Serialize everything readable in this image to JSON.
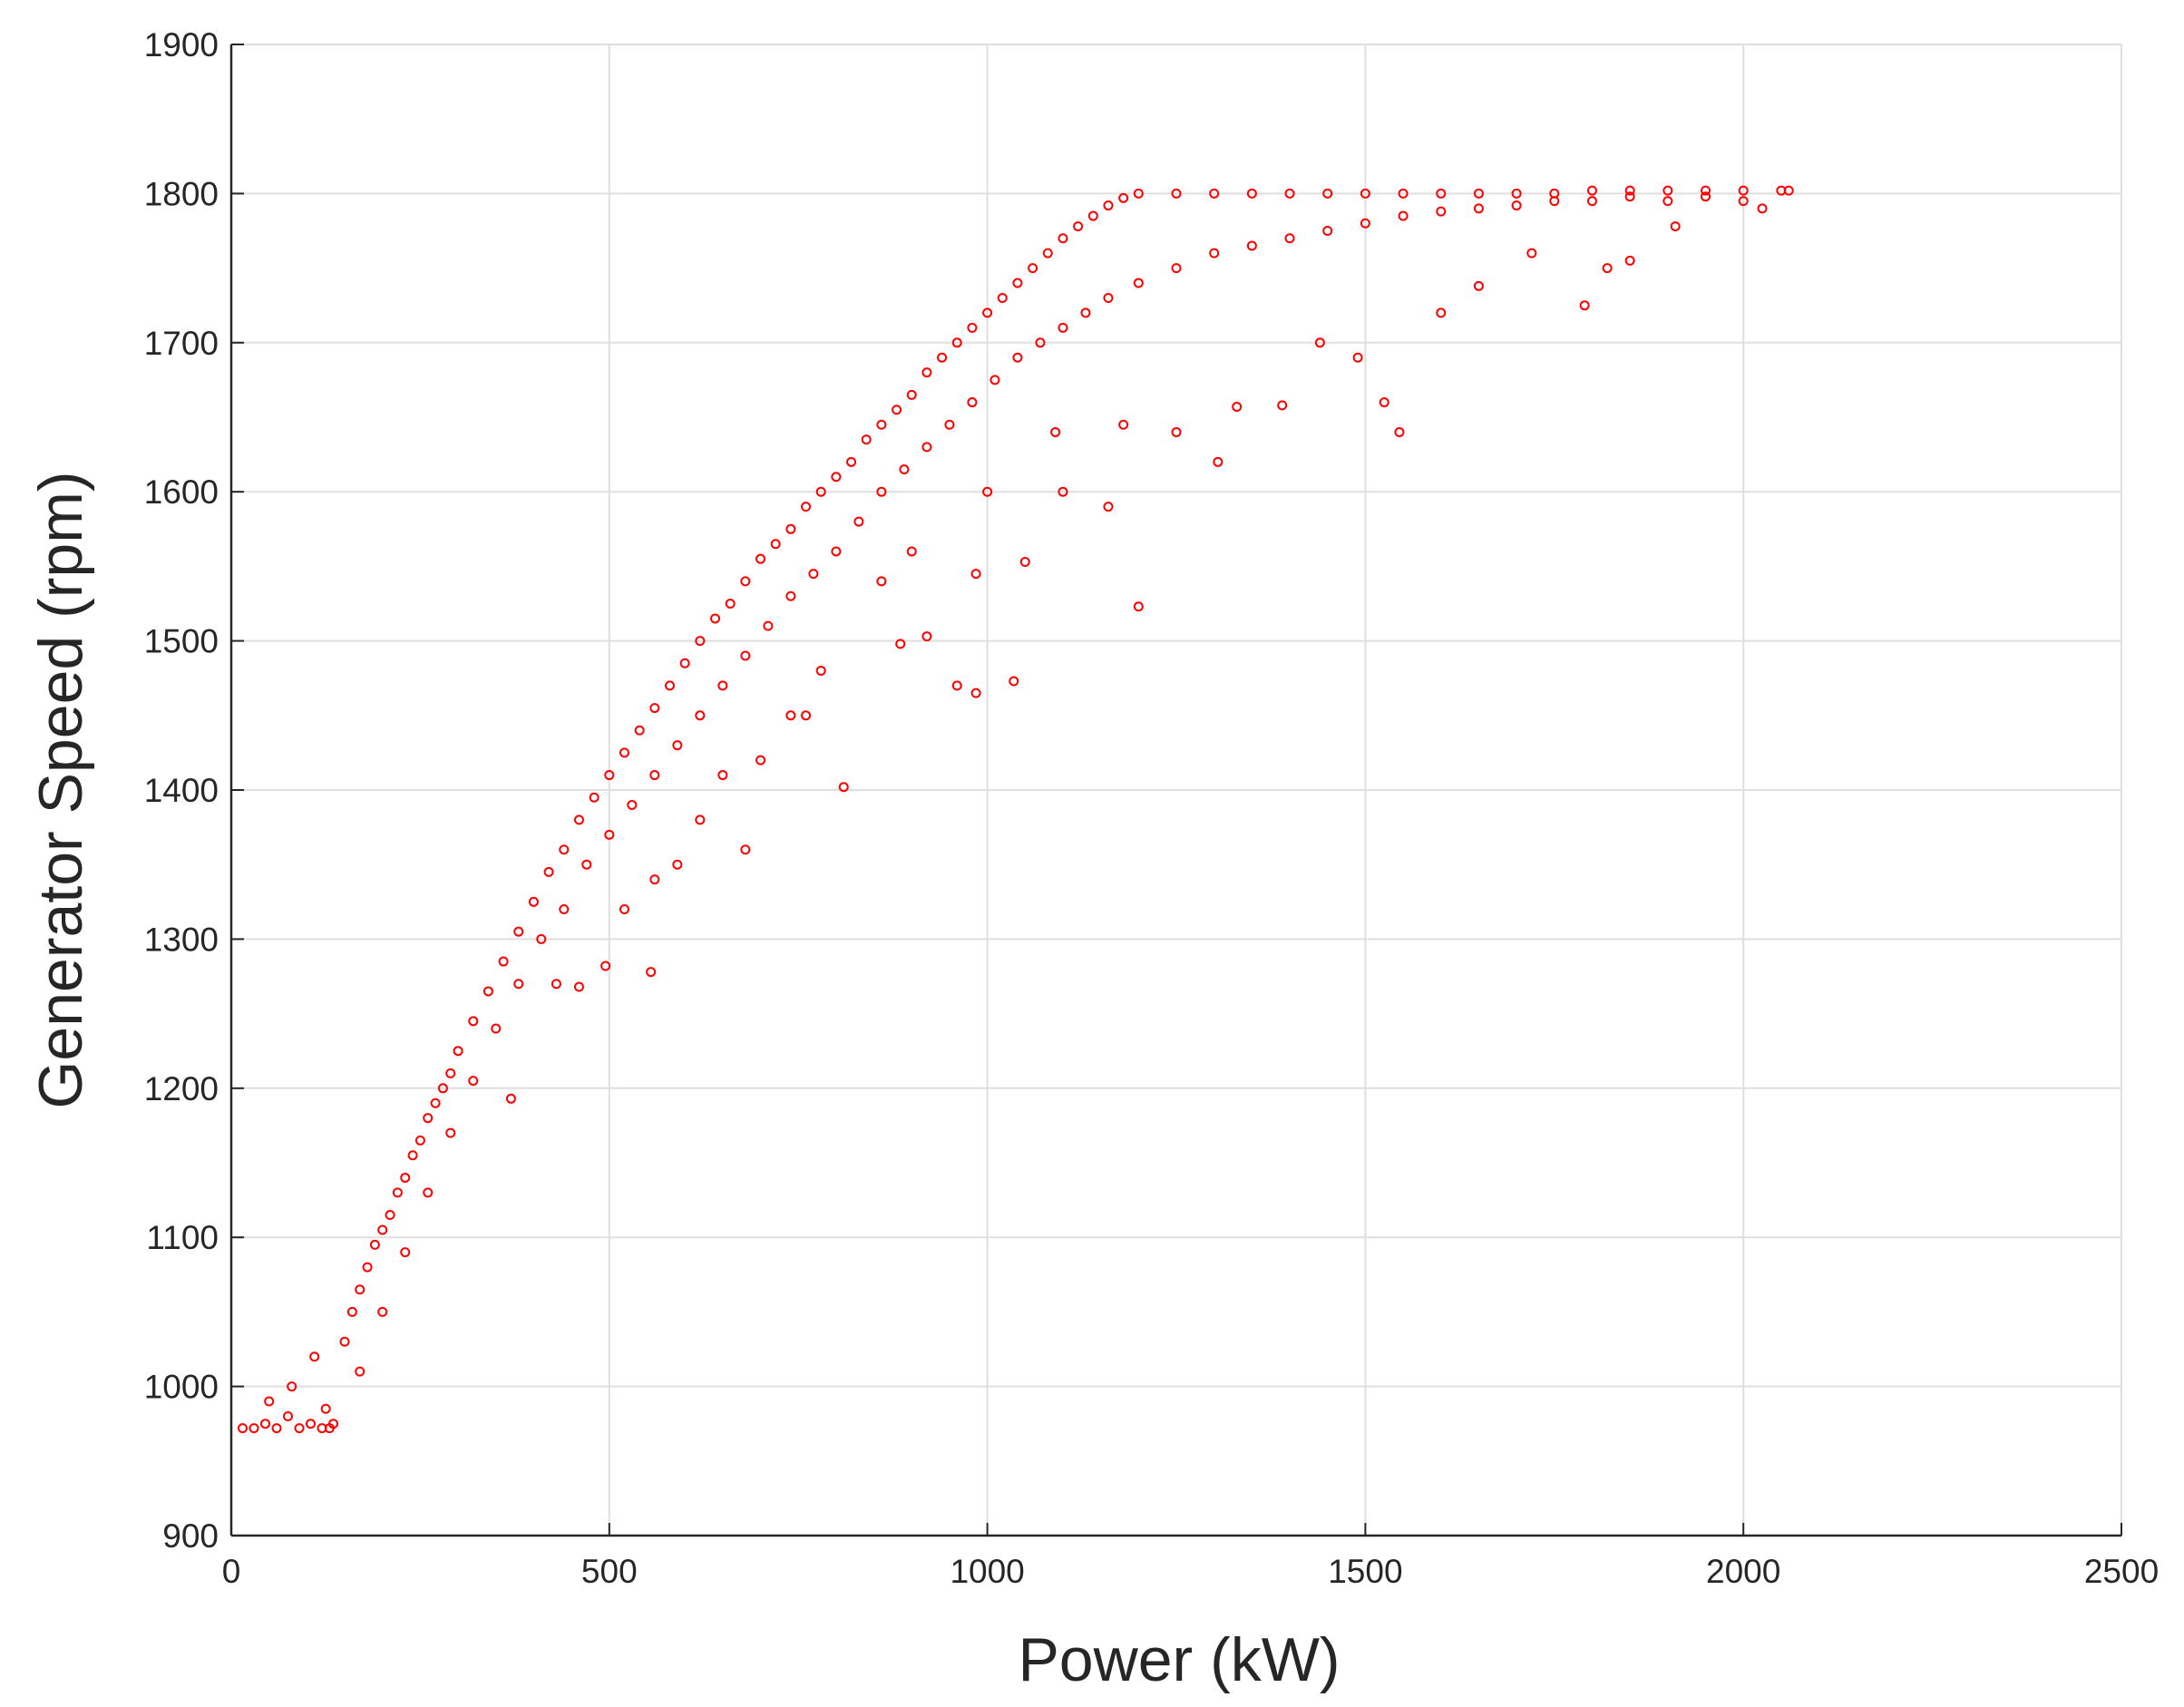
{
  "chart_data": {
    "type": "scatter",
    "x_label": "Power (kW)",
    "y_label": "Generator Speed (rpm)",
    "xlim": [
      0,
      2500
    ],
    "xticks": [
      0,
      500,
      1000,
      1500,
      2000,
      2500
    ],
    "ylim": [
      900,
      1900
    ],
    "yticks": [
      900,
      1000,
      1100,
      1200,
      1300,
      1400,
      1500,
      1600,
      1700,
      1800,
      1900
    ],
    "grid": true,
    "x": [
      15,
      30,
      45,
      60,
      75,
      90,
      105,
      120,
      130,
      50,
      80,
      110,
      125,
      135,
      150,
      160,
      170,
      180,
      190,
      200,
      210,
      220,
      230,
      240,
      250,
      260,
      270,
      280,
      290,
      300,
      320,
      340,
      360,
      380,
      400,
      420,
      440,
      460,
      480,
      500,
      520,
      540,
      560,
      580,
      600,
      620,
      640,
      660,
      680,
      700,
      720,
      740,
      760,
      780,
      800,
      820,
      840,
      860,
      880,
      900,
      920,
      940,
      960,
      980,
      1000,
      1020,
      1040,
      1060,
      1080,
      1100,
      1120,
      1140,
      1160,
      1180,
      1200,
      1250,
      1300,
      1350,
      1400,
      1450,
      1500,
      1550,
      1600,
      1650,
      1700,
      1750,
      1800,
      1850,
      1900,
      1950,
      2000,
      2050,
      2060,
      170,
      200,
      230,
      260,
      290,
      320,
      350,
      380,
      410,
      440,
      470,
      500,
      530,
      560,
      590,
      620,
      650,
      680,
      710,
      740,
      770,
      800,
      830,
      860,
      890,
      920,
      950,
      980,
      1010,
      1040,
      1070,
      1100,
      1130,
      1160,
      1200,
      1250,
      1300,
      1350,
      1400,
      1450,
      1500,
      1550,
      1600,
      1650,
      1700,
      1750,
      1800,
      1850,
      1900,
      1950,
      2000,
      2025,
      370,
      460,
      495,
      555,
      590,
      650,
      680,
      740,
      760,
      810,
      885,
      960,
      985,
      1035,
      1050,
      985,
      920,
      1200,
      1100,
      1160,
      1305,
      1330,
      1390,
      1545,
      1525,
      1490,
      1440,
      1600,
      1650,
      1790,
      1820,
      1850,
      1720,
      1910,
      1250,
      1180,
      1090,
      1000,
      900,
      860,
      780,
      700,
      620,
      560,
      520,
      430
    ],
    "series": [
      {
        "color": "#ff0000",
        "values": [
          972,
          972,
          975,
          972,
          980,
          972,
          975,
          972,
          972,
          990,
          1000,
          1020,
          985,
          975,
          1030,
          1050,
          1065,
          1080,
          1095,
          1105,
          1115,
          1130,
          1140,
          1155,
          1165,
          1180,
          1190,
          1200,
          1210,
          1225,
          1245,
          1265,
          1285,
          1305,
          1325,
          1345,
          1360,
          1380,
          1395,
          1410,
          1425,
          1440,
          1455,
          1470,
          1485,
          1500,
          1515,
          1525,
          1540,
          1555,
          1565,
          1575,
          1590,
          1600,
          1610,
          1620,
          1635,
          1645,
          1655,
          1665,
          1680,
          1690,
          1700,
          1710,
          1720,
          1730,
          1740,
          1750,
          1760,
          1770,
          1778,
          1785,
          1792,
          1797,
          1800,
          1800,
          1800,
          1800,
          1800,
          1800,
          1800,
          1800,
          1800,
          1800,
          1800,
          1800,
          1802,
          1802,
          1802,
          1802,
          1802,
          1802,
          1802,
          1010,
          1050,
          1090,
          1130,
          1170,
          1205,
          1240,
          1270,
          1300,
          1320,
          1350,
          1370,
          1390,
          1410,
          1430,
          1450,
          1470,
          1490,
          1510,
          1530,
          1545,
          1560,
          1580,
          1600,
          1615,
          1630,
          1645,
          1660,
          1675,
          1690,
          1700,
          1710,
          1720,
          1730,
          1740,
          1750,
          1760,
          1765,
          1770,
          1775,
          1780,
          1785,
          1788,
          1790,
          1792,
          1795,
          1795,
          1798,
          1795,
          1798,
          1795,
          1790,
          1193,
          1268,
          1282,
          1278,
          1350,
          1410,
          1360,
          1450,
          1450,
          1402,
          1498,
          1470,
          1465,
          1473,
          1553,
          1545,
          1503,
          1523,
          1600,
          1590,
          1620,
          1657,
          1658,
          1640,
          1660,
          1690,
          1700,
          1720,
          1738,
          1725,
          1750,
          1755,
          1760,
          1778,
          1640,
          1645,
          1640,
          1600,
          1560,
          1540,
          1480,
          1420,
          1380,
          1340,
          1320,
          1270
        ]
      }
    ]
  }
}
